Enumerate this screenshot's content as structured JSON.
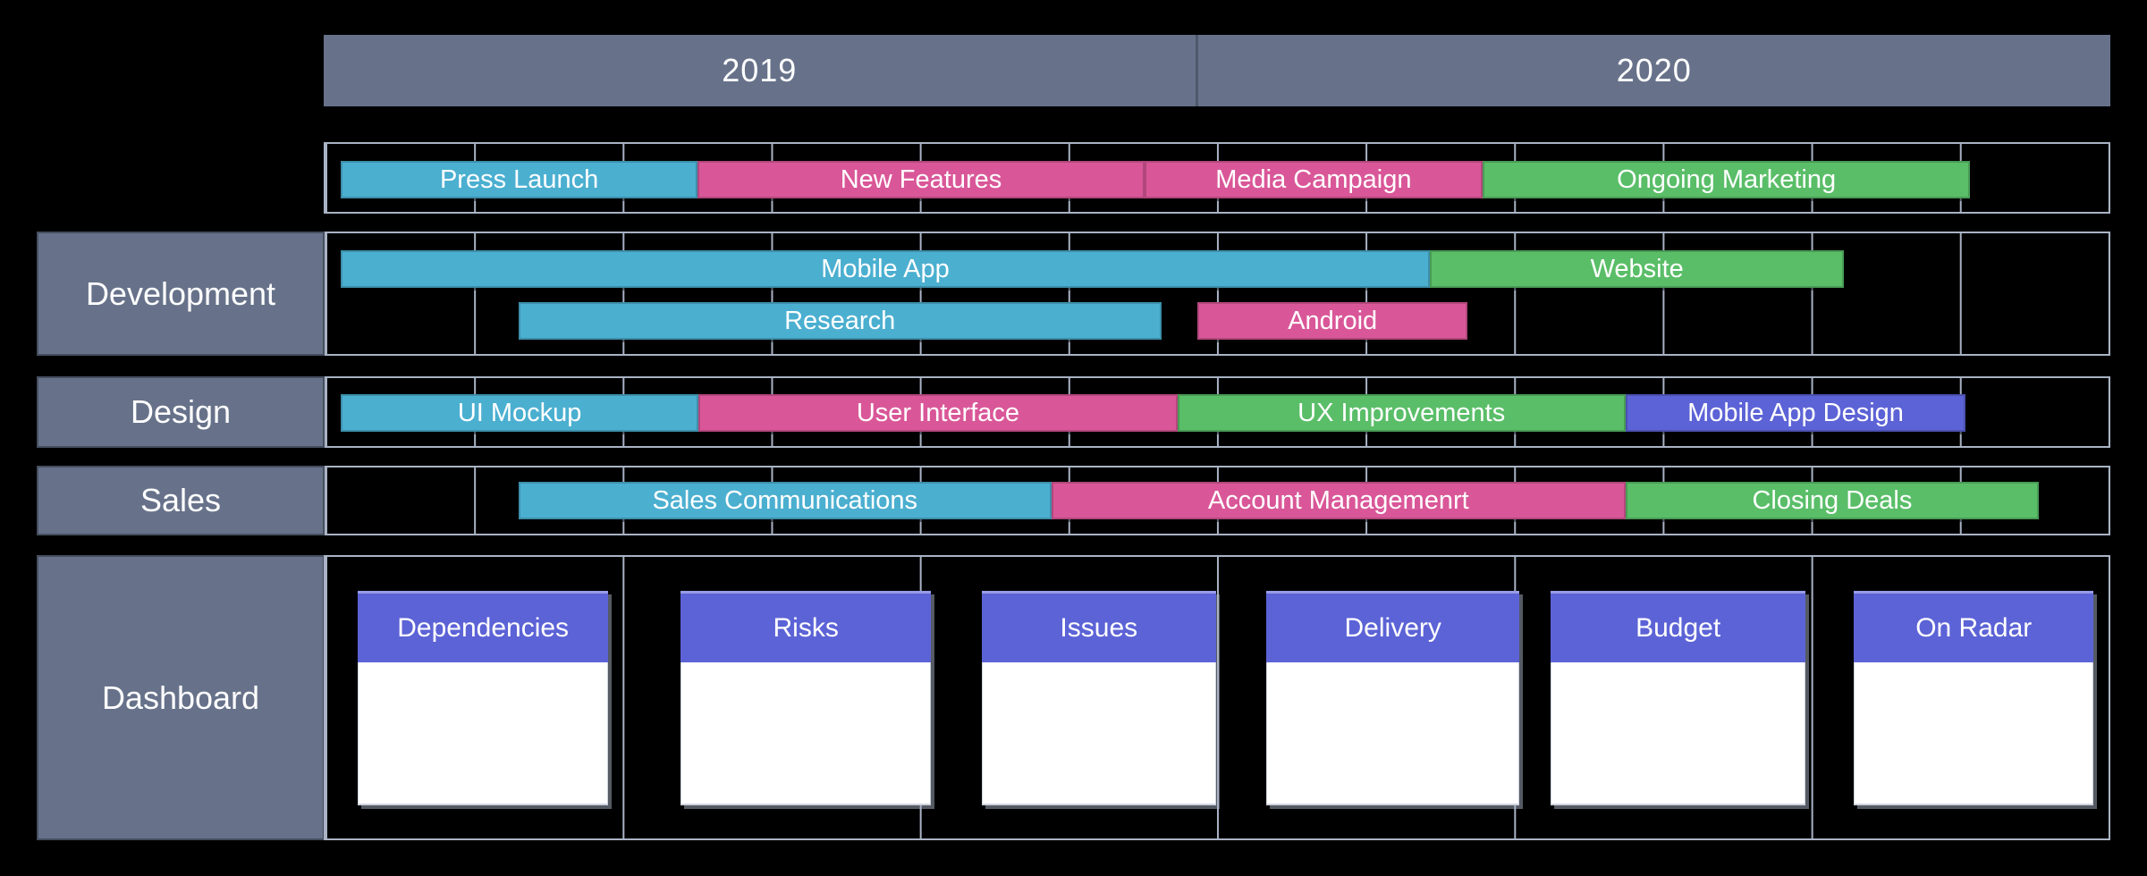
{
  "canvas": {
    "background": "#000000"
  },
  "palette": {
    "slate": "#67728A",
    "teal": "#4BAFD0",
    "pink": "#D95798",
    "green": "#5ABE68",
    "purple": "#5C63D6",
    "grid_line": "#A9B3C5",
    "bar_text": "#FFFFFF"
  },
  "grid": {
    "timeline_columns": 12,
    "dashboard_columns": 6
  },
  "year_header": {
    "years": [
      {
        "label": "2019",
        "width_pct": 48.85
      },
      {
        "label": "2020",
        "width_pct": 51.15
      }
    ]
  },
  "rows": [
    {
      "key": "marketing",
      "label": "",
      "bars": [
        {
          "label": "Press Launch",
          "color": "teal",
          "line": 0,
          "left_pct": 0.85,
          "width_pct": 20.03
        },
        {
          "label": "New Features",
          "color": "pink",
          "line": 0,
          "left_pct": 20.88,
          "width_pct": 25.04
        },
        {
          "label": "Media Campaign",
          "color": "pink",
          "line": 0,
          "left_pct": 45.92,
          "width_pct": 18.98
        },
        {
          "label": "Ongoing Marketing",
          "color": "green",
          "line": 0,
          "left_pct": 64.9,
          "width_pct": 27.34
        }
      ]
    },
    {
      "key": "development",
      "label": "Development",
      "bars": [
        {
          "label": "Mobile App",
          "color": "teal",
          "line": 0,
          "left_pct": 0.85,
          "width_pct": 61.09
        },
        {
          "label": "Website",
          "color": "green",
          "line": 0,
          "left_pct": 61.94,
          "width_pct": 23.23
        },
        {
          "label": "Research",
          "color": "teal",
          "line": 1,
          "left_pct": 10.82,
          "width_pct": 36.05
        },
        {
          "label": "Android",
          "color": "pink",
          "line": 1,
          "left_pct": 48.92,
          "width_pct": 15.12
        }
      ]
    },
    {
      "key": "design",
      "label": "Design",
      "bars": [
        {
          "label": "UI Mockup",
          "color": "teal",
          "line": 0,
          "left_pct": 0.85,
          "width_pct": 20.08
        },
        {
          "label": "User Interface",
          "color": "pink",
          "line": 0,
          "left_pct": 20.93,
          "width_pct": 26.84
        },
        {
          "label": "UX Improvements",
          "color": "green",
          "line": 0,
          "left_pct": 47.77,
          "width_pct": 25.14
        },
        {
          "label": "Mobile App Design",
          "color": "purple",
          "line": 0,
          "left_pct": 72.91,
          "width_pct": 19.08
        }
      ]
    },
    {
      "key": "sales",
      "label": "Sales",
      "bars": [
        {
          "label": "Sales Communications",
          "color": "teal",
          "line": 0,
          "left_pct": 10.82,
          "width_pct": 29.89
        },
        {
          "label": "Account Managemenrt",
          "color": "pink",
          "line": 0,
          "left_pct": 40.71,
          "width_pct": 32.2
        },
        {
          "label": "Closing Deals",
          "color": "green",
          "line": 0,
          "left_pct": 72.91,
          "width_pct": 23.18
        }
      ]
    }
  ],
  "dashboard": {
    "label": "Dashboard",
    "cards": [
      {
        "title": "Dependencies",
        "left_pct": 1.8,
        "width_pct": 14.07
      },
      {
        "title": "Risks",
        "left_pct": 19.93,
        "width_pct": 14.02
      },
      {
        "title": "Issues",
        "left_pct": 36.81,
        "width_pct": 13.12
      },
      {
        "title": "Delivery",
        "left_pct": 52.78,
        "width_pct": 14.17
      },
      {
        "title": "Budget",
        "left_pct": 68.7,
        "width_pct": 14.32
      },
      {
        "title": "On Radar",
        "left_pct": 85.73,
        "width_pct": 13.42
      }
    ]
  }
}
